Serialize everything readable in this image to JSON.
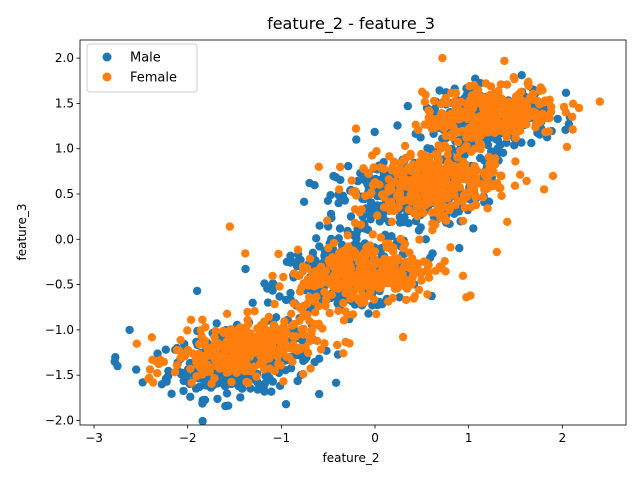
{
  "chart_data": {
    "type": "scatter",
    "title": "feature_2 - feature_3",
    "xlabel": "feature_2",
    "ylabel": "feature_3",
    "xlim": [
      -3.15,
      2.68
    ],
    "ylim": [
      -2.05,
      2.2
    ],
    "xticks": [
      -3,
      -2,
      -1,
      0,
      1,
      2
    ],
    "yticks": [
      -2.0,
      -1.5,
      -1.0,
      -0.5,
      0.0,
      0.5,
      1.0,
      1.5,
      2.0
    ],
    "xtick_labels": [
      "−3",
      "−2",
      "−1",
      "0",
      "1",
      "2"
    ],
    "ytick_labels": [
      "−2.0",
      "−1.5",
      "−1.0",
      "−0.5",
      "0.0",
      "0.5",
      "1.0",
      "1.5",
      "2.0"
    ],
    "grid": false,
    "legend_position": "top-left",
    "series": [
      {
        "name": "Male",
        "color": "#1f77b4",
        "clusters": [
          {
            "cx": -1.45,
            "cy": -1.35,
            "sx": 0.38,
            "sy": 0.18,
            "n": 320
          },
          {
            "cx": -0.3,
            "cy": -0.4,
            "sx": 0.38,
            "sy": 0.2,
            "n": 320
          },
          {
            "cx": 0.35,
            "cy": 0.5,
            "sx": 0.38,
            "sy": 0.2,
            "n": 320
          },
          {
            "cx": 1.2,
            "cy": 1.3,
            "sx": 0.32,
            "sy": 0.18,
            "n": 300
          }
        ],
        "points": [
          [
            -2.78,
            -1.35
          ],
          [
            -2.75,
            -1.4
          ],
          [
            -2.62,
            -1.0
          ],
          [
            -2.48,
            -1.58
          ],
          [
            -1.9,
            -0.57
          ],
          [
            -0.95,
            -1.82
          ],
          [
            0.35,
            1.47
          ],
          [
            1.05,
            0.12
          ],
          [
            -0.2,
            1.1
          ],
          [
            -0.7,
            0.62
          ]
        ]
      },
      {
        "name": "Female",
        "color": "#ff7f0e",
        "clusters": [
          {
            "cx": -1.4,
            "cy": -1.22,
            "sx": 0.38,
            "sy": 0.16,
            "n": 320
          },
          {
            "cx": -0.1,
            "cy": -0.38,
            "sx": 0.38,
            "sy": 0.18,
            "n": 320
          },
          {
            "cx": 0.55,
            "cy": 0.6,
            "sx": 0.38,
            "sy": 0.2,
            "n": 320
          },
          {
            "cx": 1.25,
            "cy": 1.38,
            "sx": 0.36,
            "sy": 0.16,
            "n": 320
          }
        ],
        "points": [
          [
            0.72,
            2.0
          ],
          [
            2.4,
            1.52
          ],
          [
            -2.42,
            -1.54
          ],
          [
            0.3,
            -1.08
          ],
          [
            1.3,
            -0.14
          ],
          [
            1.02,
            -0.62
          ],
          [
            1.9,
            0.7
          ],
          [
            -1.55,
            0.14
          ],
          [
            -0.6,
            0.8
          ],
          [
            2.05,
            1.02
          ]
        ]
      }
    ]
  }
}
